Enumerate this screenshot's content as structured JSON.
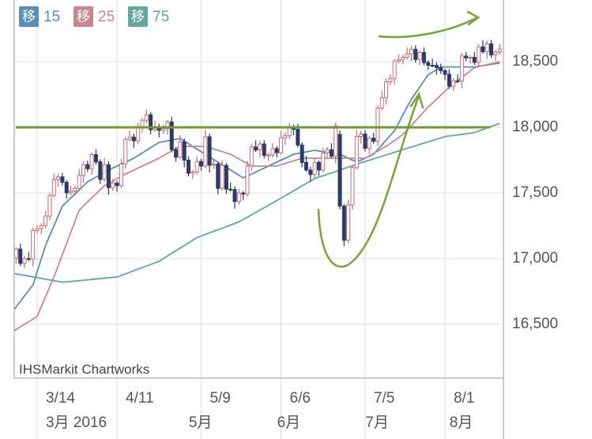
{
  "chart_data": {
    "type": "candlestick",
    "source": "IHSMarkit Chartworks",
    "legend_badge": "移",
    "up_color": "#c96e77",
    "down_color": "#2d3a66",
    "grid": true,
    "ylim": [
      16090,
      18970
    ],
    "yticks": [
      {
        "value": 16500,
        "label": "16,500"
      },
      {
        "value": 17000,
        "label": "17,000"
      },
      {
        "value": 17500,
        "label": "17,500"
      },
      {
        "value": 18000,
        "label": "18,000"
      },
      {
        "value": 18500,
        "label": "18,500"
      }
    ],
    "reference_line": {
      "value": 18000,
      "color": "#6e9a2e"
    },
    "categories": [
      null,
      null,
      null,
      null,
      null,
      null,
      "3/14",
      null,
      null,
      null,
      null,
      null,
      null,
      null,
      null,
      null,
      null,
      null,
      null,
      null,
      null,
      null,
      null,
      null,
      null,
      "4/11",
      null,
      null,
      null,
      null,
      null,
      null,
      null,
      null,
      null,
      null,
      null,
      null,
      null,
      null,
      null,
      null,
      null,
      null,
      null,
      "5/9",
      null,
      null,
      null,
      null,
      null,
      null,
      null,
      null,
      null,
      null,
      null,
      null,
      null,
      null,
      null,
      null,
      null,
      null,
      "6/6",
      null,
      null,
      null,
      null,
      null,
      null,
      null,
      null,
      null,
      null,
      null,
      null,
      null,
      null,
      null,
      null,
      null,
      null,
      null,
      "7/5",
      null,
      null,
      null,
      null,
      null,
      null,
      null,
      null,
      null,
      null,
      null,
      null,
      null,
      null,
      null,
      null,
      null,
      null,
      "8/1",
      null,
      null,
      null,
      null,
      null,
      null,
      null,
      null,
      null,
      null,
      null,
      null,
      null
    ],
    "month_labels": [
      null,
      null,
      null,
      null,
      null,
      null,
      "3月 2016",
      null,
      null,
      null,
      null,
      null,
      null,
      null,
      null,
      null,
      null,
      null,
      null,
      null,
      null,
      null,
      null,
      null,
      null,
      null,
      null,
      null,
      null,
      null,
      null,
      null,
      null,
      null,
      null,
      null,
      null,
      null,
      null,
      null,
      "5月",
      null,
      null,
      null,
      null,
      null,
      null,
      null,
      null,
      null,
      null,
      null,
      null,
      null,
      null,
      null,
      null,
      null,
      null,
      null,
      null,
      "6月",
      null,
      null,
      null,
      null,
      null,
      null,
      null,
      null,
      null,
      null,
      null,
      null,
      null,
      null,
      null,
      null,
      null,
      null,
      null,
      null,
      "7月",
      null,
      null,
      null,
      null,
      null,
      null,
      null,
      null,
      null,
      null,
      null,
      null,
      null,
      null,
      null,
      null,
      null,
      null,
      null,
      "8月",
      null,
      null,
      null,
      null,
      null,
      null,
      null,
      null,
      null,
      null,
      null,
      null,
      null
    ],
    "open": [
      16945,
      17006,
      17073,
      16964,
      17000,
      16995,
      17213,
      17229,
      17251,
      17325,
      17481,
      17602,
      17623,
      17582,
      17502,
      17515,
      17535,
      17633,
      17716,
      17685,
      17792,
      17737,
      17603,
      17716,
      17541,
      17576,
      17556,
      17721,
      17908,
      17926,
      17897,
      18004,
      18053,
      18096,
      17982,
      18003,
      17977,
      17990,
      18041,
      17830,
      17773,
      17891,
      17750,
      17651,
      17660,
      17740,
      17705,
      17928,
      17711,
      17720,
      17535,
      17710,
      17529,
      17526,
      17435,
      17500,
      17492,
      17706,
      17851,
      17828,
      17873,
      17787,
      17789,
      17838,
      17807,
      17920,
      17938,
      18005,
      17985,
      17865,
      17732,
      17675,
      17640,
      17733,
      17675,
      17804,
      17829,
      17780,
      17946,
      17400,
      17140,
      17409,
      17694,
      17930,
      17949,
      17841,
      17918,
      17895,
      18146,
      18226,
      18347,
      18372,
      18506,
      18516,
      18533,
      18559,
      18595,
      18517,
      18570,
      18493,
      18473,
      18472,
      18456,
      18432,
      18404,
      18313,
      18355,
      18352,
      18543,
      18529,
      18533,
      18495,
      18613,
      18576,
      18636,
      18552,
      18573
    ],
    "high": [
      17036,
      17088,
      17113,
      17020,
      17050,
      17238,
      17259,
      17266,
      17365,
      17501,
      17652,
      17648,
      17653,
      17597,
      17555,
      17555,
      17683,
      17741,
      17746,
      17807,
      17832,
      17757,
      17766,
      17741,
      17606,
      17591,
      17761,
      17928,
      17976,
      17951,
      18034,
      18068,
      18136,
      18116,
      18053,
      18028,
      18020,
      18056,
      18081,
      17850,
      17941,
      17916,
      17780,
      17675,
      17780,
      17760,
      17978,
      17953,
      17750,
      17735,
      17750,
      17730,
      17579,
      17551,
      17530,
      17515,
      17746,
      17871,
      17901,
      17898,
      17903,
      17804,
      17878,
      17858,
      17970,
      17963,
      18035,
      18020,
      18025,
      17885,
      17782,
      17700,
      17763,
      17748,
      17844,
      17849,
      17879,
      18036,
      17976,
      17415,
      17449,
      17714,
      17980,
      17974,
      17979,
      17933,
      17958,
      18166,
      18276,
      18372,
      18402,
      18521,
      18556,
      18553,
      18609,
      18620,
      18625,
      18585,
      18610,
      18513,
      18523,
      18497,
      18486,
      18447,
      18444,
      18375,
      18405,
      18568,
      18573,
      18548,
      18573,
      18633,
      18663,
      18661,
      18666,
      18588,
      18637
    ],
    "low": [
      16920,
      16961,
      16944,
      16929,
      16980,
      16940,
      17188,
      17184,
      17231,
      17290,
      17466,
      17547,
      17557,
      17457,
      17482,
      17480,
      17520,
      17578,
      17660,
      17640,
      17717,
      17568,
      17588,
      17486,
      17516,
      17511,
      17536,
      17686,
      17893,
      17842,
      17872,
      17959,
      18033,
      17947,
      17967,
      17922,
      17952,
      17945,
      17810,
      17738,
      17758,
      17695,
      17626,
      17606,
      17640,
      17670,
      17690,
      17656,
      17686,
      17490,
      17515,
      17494,
      17511,
      17380,
      17410,
      17447,
      17472,
      17671,
      17813,
      17773,
      17762,
      17742,
      17769,
      17772,
      17792,
      17865,
      17913,
      17940,
      17845,
      17697,
      17660,
      17585,
      17615,
      17630,
      17655,
      17769,
      17765,
      17725,
      17375,
      17095,
      17120,
      17374,
      17679,
      17875,
      17816,
      17796,
      17875,
      17860,
      18131,
      18171,
      18322,
      18327,
      18486,
      18481,
      18518,
      18504,
      18492,
      18472,
      18473,
      18438,
      18457,
      18401,
      18407,
      18359,
      18293,
      18278,
      18337,
      18297,
      18504,
      18484,
      18475,
      18460,
      18561,
      18521,
      18527,
      18507,
      18553
    ],
    "close": [
      17006,
      17073,
      16964,
      17000,
      16995,
      17213,
      17229,
      17251,
      17325,
      17481,
      17602,
      17623,
      17582,
      17502,
      17515,
      17535,
      17633,
      17716,
      17685,
      17792,
      17737,
      17603,
      17716,
      17541,
      17576,
      17556,
      17721,
      17908,
      17926,
      17897,
      18004,
      18053,
      18096,
      17982,
      18003,
      17977,
      17990,
      18041,
      17830,
      17773,
      17891,
      17750,
      17651,
      17660,
      17740,
      17705,
      17928,
      17711,
      17720,
      17535,
      17710,
      17529,
      17526,
      17435,
      17500,
      17492,
      17706,
      17851,
      17828,
      17873,
      17787,
      17789,
      17838,
      17807,
      17920,
      17938,
      18005,
      17985,
      17865,
      17732,
      17675,
      17640,
      17733,
      17675,
      17804,
      17829,
      17780,
      18011,
      17400,
      17140,
      17409,
      17694,
      17930,
      17949,
      17841,
      17918,
      17895,
      18146,
      18226,
      18347,
      18372,
      18506,
      18516,
      18533,
      18559,
      18595,
      18517,
      18570,
      18493,
      18473,
      18472,
      18456,
      18432,
      18404,
      18313,
      18355,
      18352,
      18543,
      18529,
      18533,
      18495,
      18613,
      18576,
      18636,
      18552,
      18573,
      18597
    ],
    "series": [
      {
        "name": "15",
        "color": "#5b8db9",
        "values": [
          16590,
          16632,
          16674,
          16716,
          16758,
          16800,
          16900,
          17000,
          17100,
          17175,
          17250,
          17325,
          17400,
          17431,
          17462,
          17492,
          17523,
          17554,
          17585,
          17603,
          17621,
          17639,
          17657,
          17675,
          17690,
          17705,
          17720,
          17735,
          17750,
          17765,
          17785,
          17805,
          17825,
          17845,
          17865,
          17885,
          17891,
          17897,
          17903,
          17909,
          17915,
          17895,
          17875,
          17855,
          17835,
          17815,
          17795,
          17775,
          17755,
          17735,
          17715,
          17695,
          17675,
          17655,
          17635,
          17615,
          17630,
          17645,
          17660,
          17675,
          17690,
          17705,
          17720,
          17735,
          17750,
          17765,
          17780,
          17795,
          17801,
          17807,
          17813,
          17819,
          17825,
          17820,
          17815,
          17810,
          17805,
          17800,
          17795,
          17780,
          17765,
          17750,
          17735,
          17750,
          17765,
          17780,
          17795,
          17831,
          17867,
          17903,
          17939,
          17975,
          18035,
          18095,
          18155,
          18215,
          18261,
          18307,
          18354,
          18400,
          18420,
          18440,
          18460,
          18460,
          18460,
          18460,
          18460,
          18460,
          18460,
          18460,
          18460,
          18465,
          18470,
          18475,
          18480,
          18485,
          18490
        ]
      },
      {
        "name": "25",
        "color": "#c98890",
        "values": [
          16440,
          16460,
          16480,
          16500,
          16520,
          16540,
          16560,
          16635,
          16710,
          16785,
          16860,
          16945,
          17030,
          17115,
          17200,
          17285,
          17370,
          17401,
          17432,
          17463,
          17493,
          17524,
          17555,
          17573,
          17591,
          17609,
          17627,
          17645,
          17660,
          17675,
          17690,
          17705,
          17720,
          17735,
          17750,
          17765,
          17783,
          17801,
          17819,
          17837,
          17855,
          17855,
          17855,
          17855,
          17855,
          17855,
          17855,
          17845,
          17835,
          17825,
          17815,
          17805,
          17795,
          17777,
          17759,
          17741,
          17723,
          17705,
          17705,
          17705,
          17705,
          17705,
          17705,
          17705,
          17715,
          17725,
          17735,
          17745,
          17755,
          17765,
          17765,
          17765,
          17765,
          17765,
          17765,
          17765,
          17765,
          17765,
          17765,
          17765,
          17765,
          17765,
          17765,
          17765,
          17765,
          17783,
          17801,
          17819,
          17837,
          17855,
          17878,
          17900,
          17923,
          17945,
          17980,
          18015,
          18050,
          18085,
          18120,
          18155,
          18185,
          18215,
          18245,
          18275,
          18305,
          18330,
          18355,
          18380,
          18405,
          18430,
          18455,
          18463,
          18470,
          18478,
          18485,
          18493,
          18500
        ]
      },
      {
        "name": "75",
        "color": "#62a7a0",
        "values": [
          16890,
          16884,
          16878,
          16873,
          16867,
          16861,
          16855,
          16849,
          16843,
          16838,
          16832,
          16826,
          16820,
          16823,
          16826,
          16829,
          16832,
          16835,
          16838,
          16842,
          16845,
          16848,
          16851,
          16854,
          16857,
          16860,
          16872,
          16884,
          16896,
          16908,
          16920,
          16932,
          16944,
          16956,
          16968,
          16980,
          17000,
          17020,
          17040,
          17060,
          17080,
          17100,
          17120,
          17140,
          17160,
          17172,
          17184,
          17196,
          17208,
          17220,
          17232,
          17244,
          17256,
          17268,
          17280,
          17298,
          17316,
          17334,
          17352,
          17370,
          17388,
          17406,
          17424,
          17442,
          17460,
          17479,
          17498,
          17516,
          17535,
          17554,
          17573,
          17591,
          17610,
          17621,
          17632,
          17642,
          17653,
          17664,
          17675,
          17686,
          17697,
          17708,
          17718,
          17729,
          17740,
          17750,
          17760,
          17770,
          17780,
          17790,
          17800,
          17810,
          17820,
          17830,
          17840,
          17850,
          17860,
          17870,
          17880,
          17890,
          17900,
          17910,
          17920,
          17930,
          17934,
          17939,
          17943,
          17947,
          17951,
          17956,
          17960,
          17972,
          17983,
          17995,
          18007,
          18018,
          18030
        ]
      }
    ]
  }
}
